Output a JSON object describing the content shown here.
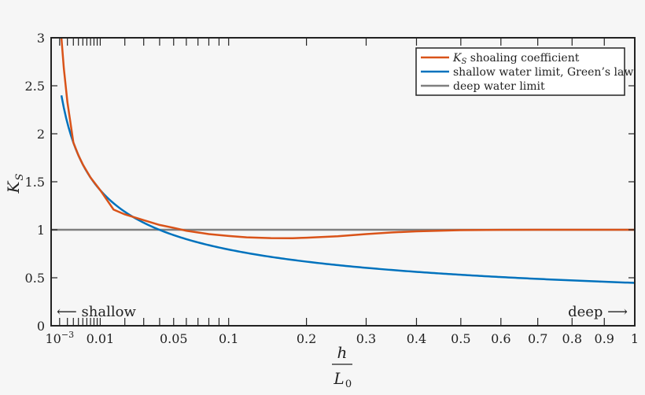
{
  "chart_data": {
    "type": "line",
    "x_axis": {
      "scale": "sqrt",
      "range": [
        0.0003,
        1
      ],
      "labeled_ticks": [
        {
          "value": 0.001,
          "label": "10",
          "sup": "−3"
        },
        {
          "value": 0.01,
          "label": "0.01"
        },
        {
          "value": 0.05,
          "label": "0.05"
        },
        {
          "value": 0.1,
          "label": "0.1"
        },
        {
          "value": 0.2,
          "label": "0.2"
        },
        {
          "value": 0.3,
          "label": "0.3"
        },
        {
          "value": 0.4,
          "label": "0.4"
        },
        {
          "value": 0.5,
          "label": "0.5"
        },
        {
          "value": 0.6,
          "label": "0.6"
        },
        {
          "value": 0.7,
          "label": "0.7"
        },
        {
          "value": 0.8,
          "label": "0.8"
        },
        {
          "value": 0.9,
          "label": "0.9"
        },
        {
          "value": 1,
          "label": "1"
        }
      ],
      "minor_ticks": [
        0.001,
        0.002,
        0.003,
        0.004,
        0.005,
        0.006,
        0.007,
        0.008,
        0.009,
        0.01,
        0.02,
        0.03,
        0.04,
        0.05,
        0.06,
        0.07,
        0.08,
        0.09,
        0.1,
        0.2,
        0.3,
        0.4,
        0.5,
        0.6,
        0.7,
        0.8,
        0.9,
        1
      ],
      "label_numerator": "h",
      "label_denominator": "L",
      "label_denominator_sub": "0"
    },
    "y_axis": {
      "range": [
        0,
        3
      ],
      "ticks": [
        0,
        0.5,
        1,
        1.5,
        2,
        2.5,
        3
      ],
      "tick_labels": [
        "0",
        "0.5",
        "1",
        "1.5",
        "2",
        "2.5",
        "3"
      ],
      "label": "K",
      "label_sub": "S"
    },
    "series": [
      {
        "name": "K_S shoaling coefficient",
        "legend_main": "K",
        "legend_sub": "S",
        "legend_rest": " shoaling coefficient",
        "color": "#d95319",
        "x": [
          0.0012,
          0.0015,
          0.002,
          0.003,
          0.004,
          0.005,
          0.007,
          0.01,
          0.015,
          0.02,
          0.03,
          0.04,
          0.05,
          0.06,
          0.08,
          0.1,
          0.12,
          0.15,
          0.18,
          0.2,
          0.25,
          0.3,
          0.35,
          0.4,
          0.5,
          0.6,
          0.7,
          0.8,
          0.9,
          1.0
        ],
        "y": [
          3.0,
          2.68,
          2.33,
          1.9,
          1.65,
          1.48,
          1.27,
          1.3,
          1.21,
          1.16,
          1.1,
          1.05,
          1.02,
          0.99,
          0.955,
          0.935,
          0.921,
          0.913,
          0.912,
          0.917,
          0.932,
          0.955,
          0.972,
          0.984,
          0.996,
          0.999,
          1.0,
          1.0,
          1.0,
          1.0
        ]
      },
      {
        "name": "shallow water limit, Green's law",
        "legend_text": "shallow water limit, Green’s law",
        "color": "#0072bd",
        "formula": "sqrt_inverse_fourth_root",
        "coef": 0.4466,
        "x_start": 0.0012,
        "x_end": 1.0
      },
      {
        "name": "deep water limit",
        "legend_text": "deep water limit",
        "color": "#7f7f7f",
        "x": [
          0.0003,
          1
        ],
        "y": [
          1,
          1
        ]
      }
    ],
    "annotations": {
      "left": "⟵ shallow",
      "right": "deep ⟶"
    },
    "legend_placement": "top-right",
    "grid": false
  }
}
